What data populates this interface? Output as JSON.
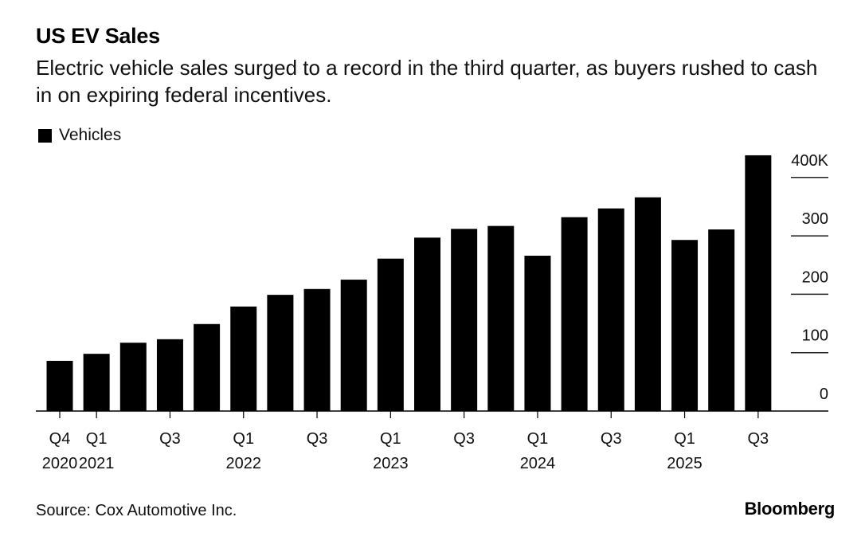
{
  "header": {
    "title": "US EV Sales",
    "subtitle": "Electric vehicle sales surged to a record in the third quarter, as buyers rushed to cash in on expiring federal incentives."
  },
  "footer": {
    "source": "Source: Cox Automotive Inc.",
    "brand": "Bloomberg"
  },
  "chart_data": {
    "type": "bar",
    "title": "US EV Sales",
    "subtitle": "Electric vehicle sales surged to a record in the third quarter, as buyers rushed to cash in on expiring federal incentives.",
    "legend": [
      {
        "name": "Vehicles",
        "color": "#000000"
      }
    ],
    "legend_position": "top-left",
    "xlabel": "",
    "ylabel": "",
    "y_axis_side": "right",
    "ylim": [
      0,
      440000
    ],
    "y_ticks": [
      {
        "value": 0,
        "label": "0"
      },
      {
        "value": 100000,
        "label": "100"
      },
      {
        "value": 200000,
        "label": "200"
      },
      {
        "value": 300000,
        "label": "300"
      },
      {
        "value": 400000,
        "label": "400K"
      }
    ],
    "grid": "horizontal short lines at y-axis ticks",
    "categories": [
      "Q4 2020",
      "Q1 2021",
      "Q2 2021",
      "Q3 2021",
      "Q4 2021",
      "Q1 2022",
      "Q2 2022",
      "Q3 2022",
      "Q4 2022",
      "Q1 2023",
      "Q2 2023",
      "Q3 2023",
      "Q4 2023",
      "Q1 2024",
      "Q2 2024",
      "Q3 2024",
      "Q4 2024",
      "Q1 2025",
      "Q2 2025",
      "Q3 2025"
    ],
    "series": [
      {
        "name": "Vehicles",
        "color": "#000000",
        "values": [
          86000,
          98000,
          117000,
          123000,
          149000,
          179000,
          199000,
          209000,
          225000,
          261000,
          297000,
          312000,
          317000,
          266000,
          332000,
          347000,
          366000,
          293000,
          311000,
          438000
        ]
      }
    ],
    "x_ticks": [
      {
        "index": 0,
        "line1": "Q4",
        "line2": "2020"
      },
      {
        "index": 1,
        "line1": "Q1",
        "line2": "2021"
      },
      {
        "index": 3,
        "line1": "Q3",
        "line2": ""
      },
      {
        "index": 5,
        "line1": "Q1",
        "line2": "2022"
      },
      {
        "index": 7,
        "line1": "Q3",
        "line2": ""
      },
      {
        "index": 9,
        "line1": "Q1",
        "line2": "2023"
      },
      {
        "index": 11,
        "line1": "Q3",
        "line2": ""
      },
      {
        "index": 13,
        "line1": "Q1",
        "line2": "2024"
      },
      {
        "index": 15,
        "line1": "Q3",
        "line2": ""
      },
      {
        "index": 17,
        "line1": "Q1",
        "line2": "2025"
      },
      {
        "index": 19,
        "line1": "Q3",
        "line2": ""
      }
    ]
  }
}
